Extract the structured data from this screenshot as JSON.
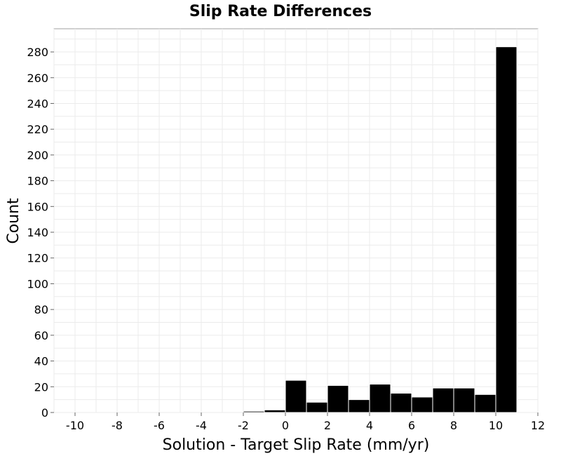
{
  "chart_data": {
    "type": "bar",
    "title": "Slip Rate Differences",
    "xlabel": "Solution - Target Slip Rate (mm/yr)",
    "ylabel": "Count",
    "xlim": [
      -11,
      12
    ],
    "ylim": [
      0,
      298
    ],
    "xticks": [
      -10,
      -8,
      -6,
      -4,
      -2,
      0,
      2,
      4,
      6,
      8,
      10,
      12
    ],
    "yticks": [
      0,
      20,
      40,
      60,
      80,
      100,
      120,
      140,
      160,
      180,
      200,
      220,
      240,
      260,
      280
    ],
    "grid": true,
    "bin_width": 1,
    "bins": [
      {
        "x0": -2,
        "x1": -1,
        "count": 1
      },
      {
        "x0": -1,
        "x1": 0,
        "count": 2
      },
      {
        "x0": 0,
        "x1": 1,
        "count": 25
      },
      {
        "x0": 1,
        "x1": 2,
        "count": 8
      },
      {
        "x0": 2,
        "x1": 3,
        "count": 21
      },
      {
        "x0": 3,
        "x1": 4,
        "count": 10
      },
      {
        "x0": 4,
        "x1": 5,
        "count": 22
      },
      {
        "x0": 5,
        "x1": 6,
        "count": 15
      },
      {
        "x0": 6,
        "x1": 7,
        "count": 12
      },
      {
        "x0": 7,
        "x1": 8,
        "count": 19
      },
      {
        "x0": 8,
        "x1": 9,
        "count": 19
      },
      {
        "x0": 9,
        "x1": 10,
        "count": 14
      },
      {
        "x0": 10,
        "x1": 11,
        "count": 284
      }
    ],
    "bar_color": "#000000"
  }
}
